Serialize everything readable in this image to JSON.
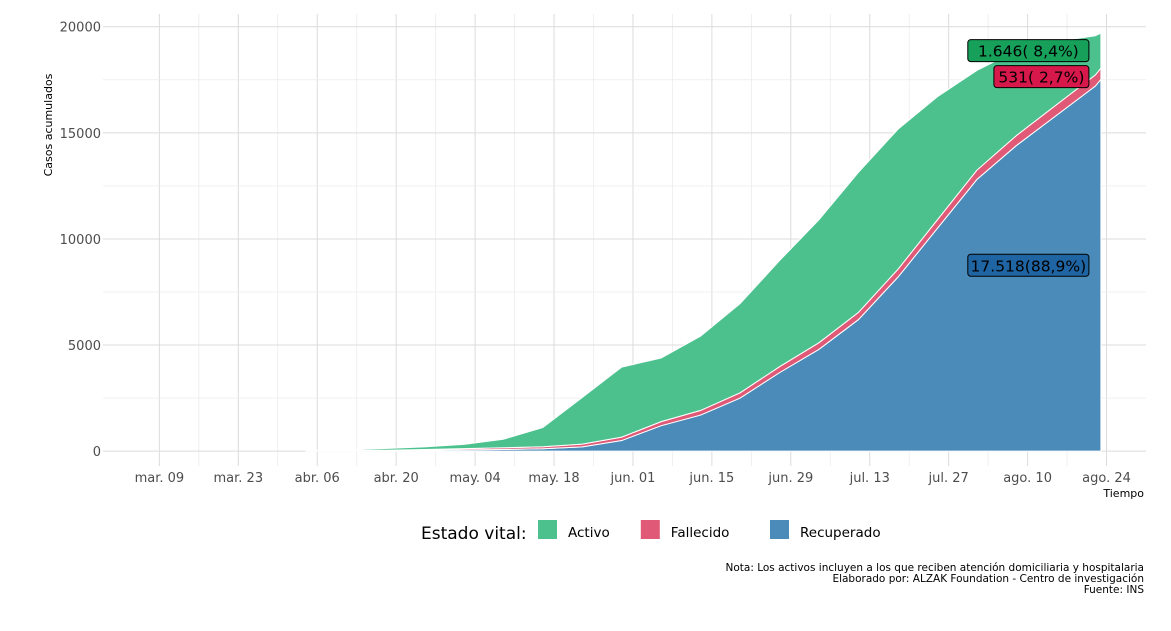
{
  "chart_data": {
    "type": "area",
    "stacked": true,
    "xlabel": "Tiempo",
    "ylabel": "Casos acumulados",
    "x_ticks": [
      "mar. 09",
      "mar. 23",
      "abr. 06",
      "abr. 20",
      "may. 04",
      "may. 18",
      "jun. 01",
      "jun. 15",
      "jun. 29",
      "jul. 13",
      "jul. 27",
      "ago. 10",
      "ago. 24"
    ],
    "x_tick_dates": [
      "2020-03-09",
      "2020-03-23",
      "2020-04-06",
      "2020-04-20",
      "2020-05-04",
      "2020-05-18",
      "2020-06-01",
      "2020-06-15",
      "2020-06-29",
      "2020-07-13",
      "2020-07-27",
      "2020-08-10",
      "2020-08-24"
    ],
    "xlim": [
      "2020-02-28",
      "2020-08-31"
    ],
    "y_ticks": [
      0,
      5000,
      10000,
      15000,
      20000
    ],
    "ylim": [
      -700,
      20600
    ],
    "grid": true,
    "x": [
      "2020-04-04",
      "2020-04-11",
      "2020-04-18",
      "2020-04-25",
      "2020-05-02",
      "2020-05-09",
      "2020-05-16",
      "2020-05-23",
      "2020-05-30",
      "2020-06-06",
      "2020-06-13",
      "2020-06-20",
      "2020-06-27",
      "2020-07-04",
      "2020-07-11",
      "2020-07-18",
      "2020-07-25",
      "2020-08-01",
      "2020-08-08",
      "2020-08-15",
      "2020-08-22",
      "2020-08-23"
    ],
    "series": [
      {
        "name": "Recuperado",
        "color": "#4a8bb9",
        "values": [
          0,
          10,
          20,
          40,
          60,
          80,
          110,
          200,
          500,
          1200,
          1700,
          2500,
          3700,
          4800,
          6200,
          8200,
          10500,
          12800,
          14400,
          15800,
          17200,
          17518
        ]
      },
      {
        "name": "Fallecido",
        "color": "#e05a78",
        "values": [
          5,
          10,
          25,
          40,
          60,
          80,
          100,
          130,
          160,
          190,
          220,
          250,
          280,
          310,
          340,
          370,
          400,
          440,
          470,
          500,
          525,
          531
        ]
      },
      {
        "name": "Activo",
        "color": "#4cc18e",
        "values": [
          0,
          30,
          80,
          120,
          200,
          400,
          900,
          2200,
          3300,
          3000,
          3500,
          4200,
          5000,
          5800,
          6600,
          6600,
          5800,
          4700,
          4000,
          3000,
          1850,
          1646
        ]
      }
    ],
    "callouts": [
      {
        "series": "Activo",
        "text": "1.646(  8,4%)",
        "fill": "#16a05a"
      },
      {
        "series": "Fallecido",
        "text": "531( 2,7%)",
        "fill": "#d6184b"
      },
      {
        "series": "Recuperado",
        "text": "17.518(88,9%)",
        "fill": "#1f64a3"
      }
    ],
    "legend": {
      "title": "Estado vital:",
      "position": "bottom",
      "items": [
        "Activo",
        "Fallecido",
        "Recuperado"
      ]
    },
    "notes": [
      "Nota: Los activos incluyen a los que reciben atención domiciliaria y hospitalaria",
      "Elaborado por: ALZAK Foundation - Centro de investigación",
      "Fuente: INS"
    ]
  }
}
